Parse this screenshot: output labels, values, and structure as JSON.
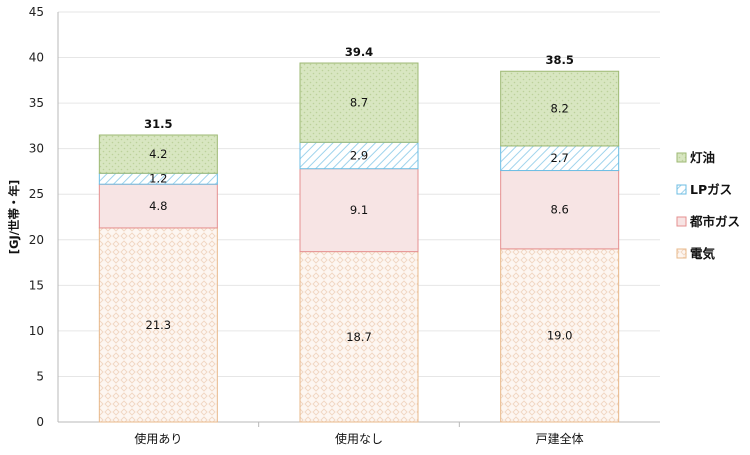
{
  "chart_data": {
    "type": "bar",
    "stacked": true,
    "ylabel": "[GJ/世帯・年]",
    "ylim": [
      0,
      45
    ],
    "yticks": [
      0,
      5,
      10,
      15,
      20,
      25,
      30,
      35,
      40,
      45
    ],
    "grid": true,
    "legend_position": "right",
    "categories": [
      "使用あり",
      "使用なし",
      "戸建全体"
    ],
    "series": [
      {
        "name": "電気",
        "values": [
          21.3,
          18.7,
          19.0
        ],
        "labels": [
          "21.3",
          "18.7",
          "19.0"
        ],
        "color": "#f3c9a5",
        "pattern": "dots"
      },
      {
        "name": "都市ガス",
        "values": [
          4.8,
          9.1,
          8.6
        ],
        "labels": [
          "4.8",
          "9.1",
          "8.6"
        ],
        "color": "#f7e1e1",
        "pattern": "solid"
      },
      {
        "name": "LPガス",
        "values": [
          1.2,
          2.9,
          2.7
        ],
        "labels": [
          "1.2",
          "2.9",
          "2.7"
        ],
        "color": "#9fd3ec",
        "pattern": "diagonal"
      },
      {
        "name": "灯油",
        "values": [
          4.2,
          8.7,
          8.2
        ],
        "labels": [
          "4.2",
          "8.7",
          "8.2"
        ],
        "color": "#d6e5bd",
        "pattern": "dots-green"
      }
    ],
    "totals": [
      "31.5",
      "39.4",
      "38.5"
    ],
    "legend_order": [
      "灯油",
      "LPガス",
      "都市ガス",
      "電気"
    ]
  }
}
